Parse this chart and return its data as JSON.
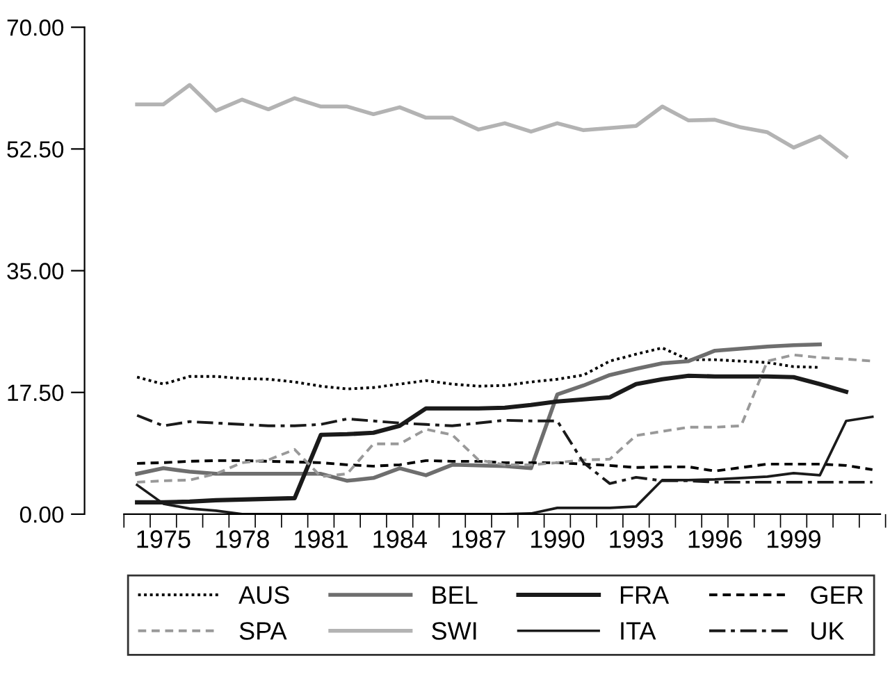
{
  "chart_data": {
    "type": "line",
    "categories": [
      null,
      "1975",
      null,
      null,
      "1978",
      null,
      null,
      "1981",
      null,
      null,
      "1984",
      null,
      null,
      "1987",
      null,
      null,
      "1990",
      null,
      null,
      "1993",
      null,
      null,
      "1996",
      null,
      null,
      "1999",
      null,
      null,
      null
    ],
    "ylim": [
      0,
      70
    ],
    "yticks": [
      {
        "value": 0,
        "label": "0.00"
      },
      {
        "value": 17.5,
        "label": "17.50"
      },
      {
        "value": 35,
        "label": "35.00"
      },
      {
        "value": 52.5,
        "label": "52.50"
      },
      {
        "value": 70,
        "label": "70.00"
      }
    ],
    "grid": false,
    "legend": "bottom",
    "marker": "none",
    "series": [
      {
        "name": "AUS",
        "color": "#000000",
        "line_style": "dotted",
        "values": [
          19.7,
          18.7,
          19.8,
          19.8,
          19.5,
          19.4,
          19.0,
          18.4,
          18.0,
          18.2,
          18.7,
          19.2,
          18.7,
          18.4,
          18.5,
          19.0,
          19.4,
          20.0,
          22.0,
          23.0,
          23.9,
          22.2,
          22.2,
          22.0,
          21.8,
          21.2,
          21.1,
          null,
          null
        ]
      },
      {
        "name": "BEL",
        "color": "#6e6e6e",
        "line_style": "solid",
        "values": [
          5.8,
          6.6,
          6.1,
          5.8,
          5.8,
          5.8,
          5.8,
          5.8,
          4.8,
          5.2,
          6.6,
          5.6,
          7.1,
          7.0,
          6.9,
          6.6,
          17.2,
          18.5,
          20.0,
          20.9,
          21.7,
          22.0,
          23.5,
          23.8,
          24.1,
          24.3,
          24.4,
          null,
          null
        ]
      },
      {
        "name": "FRA",
        "color": "#1a1a1a",
        "line_style": "solid",
        "values": [
          1.7,
          1.7,
          1.8,
          2.0,
          2.1,
          2.2,
          2.3,
          11.4,
          11.5,
          11.7,
          12.7,
          15.2,
          15.2,
          15.2,
          15.3,
          15.7,
          16.2,
          16.5,
          16.8,
          18.7,
          19.4,
          19.9,
          19.8,
          19.8,
          19.8,
          19.7,
          18.7,
          17.6,
          null
        ]
      },
      {
        "name": "GER",
        "color": "#000000",
        "line_style": "dashed",
        "values": [
          7.3,
          7.4,
          7.6,
          7.7,
          7.7,
          7.6,
          7.5,
          7.4,
          7.1,
          6.9,
          7.1,
          7.7,
          7.6,
          7.6,
          7.4,
          7.4,
          7.4,
          7.2,
          7.0,
          6.7,
          6.8,
          6.8,
          6.2,
          6.7,
          7.2,
          7.2,
          7.2,
          7.0,
          6.4
        ]
      },
      {
        "name": "SPA",
        "color": "#999999",
        "line_style": "dashed",
        "values": [
          4.6,
          4.8,
          4.9,
          5.8,
          7.4,
          7.8,
          9.3,
          5.4,
          5.8,
          10.1,
          10.1,
          12.2,
          11.4,
          7.8,
          7.1,
          7.1,
          7.4,
          7.8,
          7.9,
          11.3,
          11.9,
          12.5,
          12.5,
          12.7,
          22.0,
          22.9,
          22.5,
          22.3,
          22.0
        ]
      },
      {
        "name": "SWI",
        "color": "#b3b3b3",
        "line_style": "solid",
        "values": [
          58.9,
          58.9,
          61.7,
          58.0,
          59.6,
          58.2,
          59.8,
          58.6,
          58.6,
          57.5,
          58.5,
          57.0,
          57.0,
          55.3,
          56.2,
          55.0,
          56.2,
          55.2,
          55.5,
          55.8,
          58.6,
          56.6,
          56.7,
          55.6,
          54.9,
          52.7,
          54.3,
          51.4,
          null
        ]
      },
      {
        "name": "ITA",
        "color": "#1a1a1a",
        "line_style": "solid",
        "values": [
          4.2,
          1.5,
          0.8,
          0.5,
          0,
          0,
          0,
          0,
          0,
          0,
          0,
          0,
          0,
          0,
          0,
          0.1,
          0.9,
          0.9,
          0.9,
          1.1,
          4.9,
          4.9,
          5.0,
          5.2,
          5.4,
          5.9,
          5.6,
          13.4,
          14.0
        ]
      },
      {
        "name": "UK",
        "color": "#1a1a1a",
        "line_style": "dashdot",
        "values": [
          14.2,
          12.7,
          13.3,
          13.1,
          12.9,
          12.7,
          12.7,
          12.9,
          13.7,
          13.4,
          13.1,
          12.9,
          12.7,
          13.1,
          13.5,
          13.4,
          13.4,
          7.4,
          4.4,
          5.3,
          4.8,
          4.8,
          4.6,
          4.6,
          4.6,
          4.6,
          4.6,
          4.6,
          4.6
        ]
      }
    ]
  }
}
